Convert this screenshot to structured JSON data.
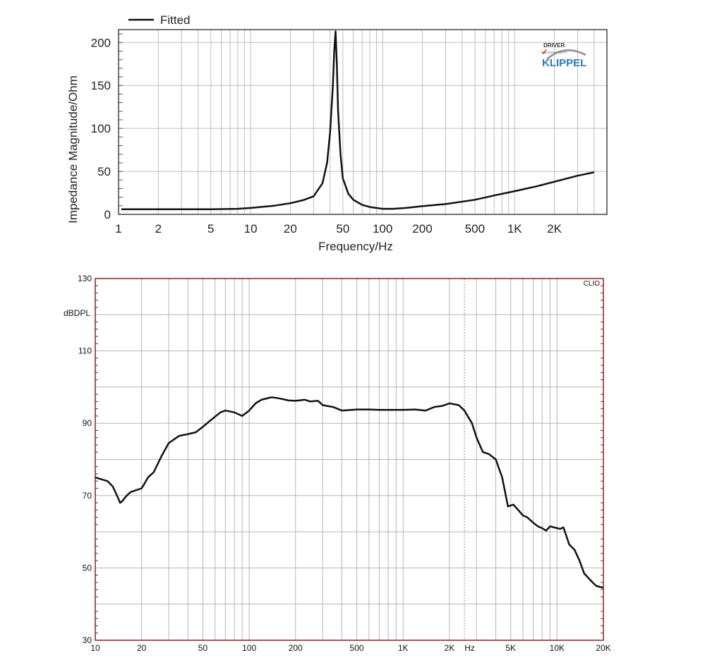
{
  "chart_data": [
    {
      "type": "line",
      "xscale": "log",
      "legend": "top-left",
      "legend_label": "Fitted",
      "xlabel": "Frequency/Hz",
      "ylabel": "Impedance Magnitude/Ohm",
      "xlim": [
        1,
        5000
      ],
      "ylim": [
        0,
        215
      ],
      "xticks": [
        {
          "v": 1,
          "label": "1"
        },
        {
          "v": 2,
          "label": "2"
        },
        {
          "v": 5,
          "label": "5"
        },
        {
          "v": 10,
          "label": "10"
        },
        {
          "v": 20,
          "label": "20"
        },
        {
          "v": 50,
          "label": "50"
        },
        {
          "v": 100,
          "label": "100"
        },
        {
          "v": 200,
          "label": "200"
        },
        {
          "v": 500,
          "label": "500"
        },
        {
          "v": 1000,
          "label": "1K"
        },
        {
          "v": 2000,
          "label": "2K"
        }
      ],
      "yticks": [
        {
          "v": 0,
          "label": "0"
        },
        {
          "v": 50,
          "label": "50"
        },
        {
          "v": 100,
          "label": "100"
        },
        {
          "v": 150,
          "label": "150"
        },
        {
          "v": 200,
          "label": "200"
        }
      ],
      "grid": true,
      "logo": {
        "line1": "DRIVER",
        "line2": "VERIFIED WITH",
        "brand": "KLIPPEL",
        "accent": "#2b7bb9"
      },
      "series": [
        {
          "name": "Fitted",
          "color": "#111111",
          "x": [
            1.05,
            3,
            5,
            8,
            10,
            15,
            20,
            25,
            30,
            35,
            38,
            40,
            42,
            43,
            44,
            45,
            46,
            48,
            50,
            55,
            60,
            70,
            80,
            100,
            120,
            150,
            200,
            300,
            500,
            700,
            1000,
            1500,
            2000,
            3000,
            4000
          ],
          "y": [
            6,
            6,
            6,
            6.5,
            7.5,
            10,
            13,
            16.5,
            21,
            36,
            60,
            95,
            150,
            190,
            213,
            175,
            120,
            70,
            42,
            24,
            17,
            11,
            8.5,
            6.5,
            6.5,
            7.5,
            9.5,
            12,
            17,
            22,
            27,
            33,
            38,
            45,
            49
          ]
        }
      ]
    },
    {
      "type": "line",
      "xscale": "log",
      "ylabel": "dBDPL",
      "corner_label": "CLIO",
      "x_unit_label": "Hz",
      "xlim": [
        10,
        20000
      ],
      "ylim": [
        30,
        130
      ],
      "xticks": [
        {
          "v": 10,
          "label": "10"
        },
        {
          "v": 20,
          "label": "20"
        },
        {
          "v": 50,
          "label": "50"
        },
        {
          "v": 100,
          "label": "100"
        },
        {
          "v": 200,
          "label": "200"
        },
        {
          "v": 500,
          "label": "500"
        },
        {
          "v": 1000,
          "label": "1K"
        },
        {
          "v": 2000,
          "label": "2K"
        },
        {
          "v": 5000,
          "label": "5K"
        },
        {
          "v": 10000,
          "label": "10K"
        },
        {
          "v": 20000,
          "label": "20K"
        }
      ],
      "yticks": [
        {
          "v": 30,
          "label": "30"
        },
        {
          "v": 50,
          "label": "50"
        },
        {
          "v": 70,
          "label": "70"
        },
        {
          "v": 90,
          "label": "90"
        },
        {
          "v": 110,
          "label": "110"
        },
        {
          "v": 130,
          "label": "130"
        }
      ],
      "marker_x": 2500,
      "marker_color": "#e07070",
      "grid": true,
      "series": [
        {
          "color": "#111111",
          "x": [
            10,
            12,
            13,
            14,
            14.5,
            15,
            16,
            17,
            20,
            21,
            22,
            24,
            27,
            30,
            35,
            40,
            45,
            50,
            55,
            65,
            70,
            80,
            85,
            90,
            100,
            110,
            120,
            140,
            160,
            180,
            200,
            230,
            250,
            280,
            300,
            350,
            400,
            500,
            600,
            700,
            800,
            1000,
            1200,
            1400,
            1600,
            1800,
            2000,
            2300,
            2500,
            2800,
            3000,
            3300,
            3600,
            4000,
            4400,
            4800,
            5200,
            5600,
            6000,
            6400,
            7000,
            7500,
            8000,
            8500,
            9000,
            10000,
            10500,
            11000,
            12000,
            13000,
            14000,
            15000,
            17000,
            18000,
            20000
          ],
          "y": [
            75,
            74,
            72.5,
            69.5,
            68,
            68.5,
            70,
            71,
            72,
            73.5,
            75,
            76.5,
            81,
            84.5,
            86.5,
            87,
            87.5,
            89,
            90.5,
            93,
            93.5,
            93,
            92.5,
            92,
            93.5,
            95.5,
            96.5,
            97.2,
            96.8,
            96.3,
            96.2,
            96.5,
            96,
            96.2,
            95,
            94.5,
            93.5,
            93.8,
            93.8,
            93.7,
            93.7,
            93.7,
            93.8,
            93.5,
            94.5,
            94.8,
            95.5,
            95,
            93.5,
            90,
            86,
            82,
            81.5,
            80,
            75,
            67,
            67.5,
            66,
            64.5,
            64,
            62.5,
            61.5,
            61,
            60.3,
            61.5,
            61,
            60.8,
            61.2,
            56.5,
            55,
            52,
            48.5,
            46,
            45,
            44.5
          ]
        }
      ]
    }
  ]
}
